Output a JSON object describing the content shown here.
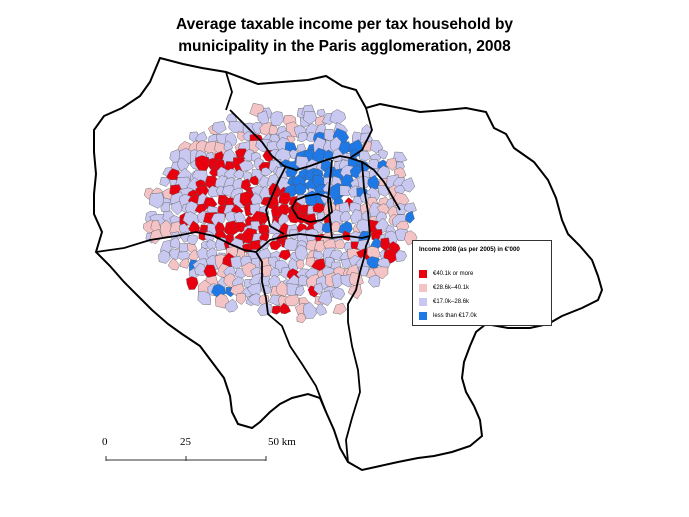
{
  "title": {
    "line1": "Average taxable income per tax household by",
    "line2": "municipality in the Paris agglomeration, 2008"
  },
  "legend": {
    "title": "Income 2008 (as per 2005) in €'000",
    "items": [
      {
        "label": "€40.1k or more",
        "color": "#e8000f"
      },
      {
        "label": "€28.6k–40.1k",
        "color": "#f4c3c6"
      },
      {
        "label": "€17.0k–28.6k",
        "color": "#c8c8f0"
      },
      {
        "label": "less than €17.0k",
        "color": "#1e78e6"
      }
    ]
  },
  "scale_bar": {
    "ticks": [
      "0",
      "25",
      "50 km"
    ]
  },
  "map_colors": {
    "outline": "#000000",
    "department_border": "#000000",
    "commune_border": "#555555"
  }
}
